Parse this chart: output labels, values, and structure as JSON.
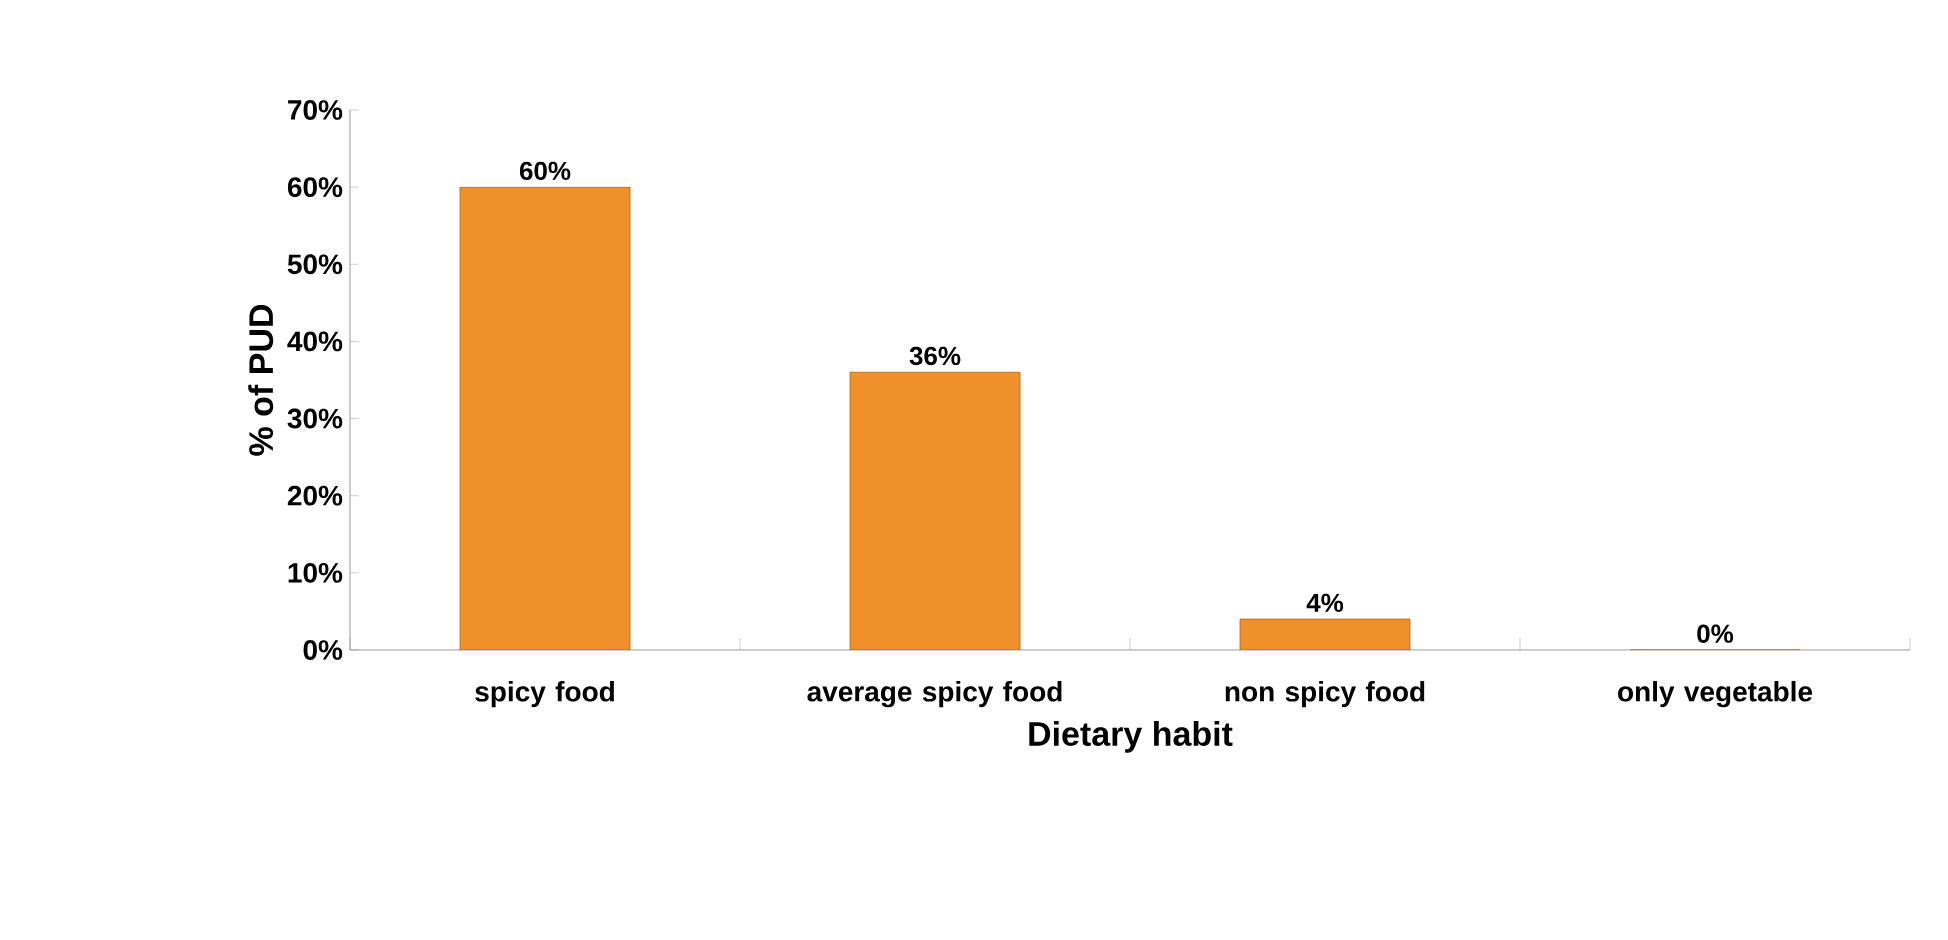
{
  "chart_data": {
    "type": "bar",
    "xlabel": "Dietary habit",
    "ylabel": "% of PUD",
    "categories": [
      "spicy food",
      "average spicy food",
      "non spicy food",
      "only vegetable"
    ],
    "values": [
      60,
      36,
      4,
      0
    ],
    "value_labels": [
      "60%",
      "36%",
      "4%",
      "0%"
    ],
    "color": "#f0902a",
    "ylim": [
      0,
      70
    ],
    "yticks": [
      {
        "value": 0,
        "label": "0%"
      },
      {
        "value": 10,
        "label": "10%"
      },
      {
        "value": 20,
        "label": "20%"
      },
      {
        "value": 30,
        "label": "30%"
      },
      {
        "value": 40,
        "label": "40%"
      },
      {
        "value": 50,
        "label": "50%"
      },
      {
        "value": 60,
        "label": "60%"
      },
      {
        "value": 70,
        "label": "70%"
      }
    ],
    "grid": false
  }
}
